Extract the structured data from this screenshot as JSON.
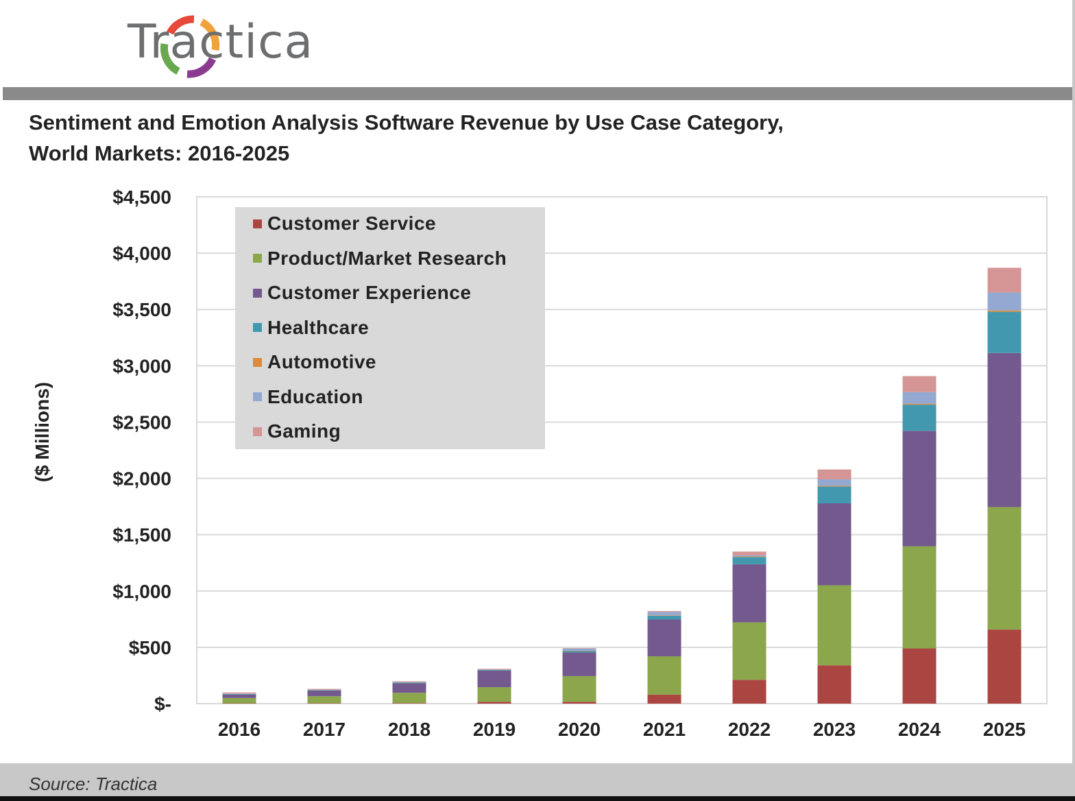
{
  "header": {
    "logo_text": "Tractica"
  },
  "chart_data": {
    "type": "bar",
    "stacked": true,
    "title": "Sentiment and Emotion Analysis Software Revenue by Use Case Category, World Markets: 2016-2025",
    "title_lines": [
      "Sentiment and Emotion Analysis Software Revenue by Use Case Category,",
      "World Markets: 2016-2025"
    ],
    "xlabel": "",
    "ylabel": "($ Millions)",
    "ylim": [
      0,
      4500
    ],
    "yticks": [
      0,
      500,
      1000,
      1500,
      2000,
      2500,
      3000,
      3500,
      4000,
      4500
    ],
    "ytick_labels": [
      "$-",
      "$500",
      "$1,000",
      "$1,500",
      "$2,000",
      "$2,500",
      "$3,000",
      "$3,500",
      "$4,000",
      "$4,500"
    ],
    "grid": true,
    "legend_position": "top-left",
    "categories": [
      "2016",
      "2017",
      "2018",
      "2019",
      "2020",
      "2021",
      "2022",
      "2023",
      "2024",
      "2025"
    ],
    "series": [
      {
        "name": "Customer Service",
        "color": "#ab4541",
        "values": [
          3,
          4,
          5,
          16,
          16,
          80,
          211,
          340,
          490,
          657
        ]
      },
      {
        "name": "Product/Market Research",
        "color": "#8ca64c",
        "values": [
          47,
          62,
          91,
          130,
          228,
          340,
          511,
          711,
          907,
          1088
        ]
      },
      {
        "name": "Customer Experience",
        "color": "#74598f",
        "values": [
          30,
          50,
          84,
          148,
          210,
          326,
          515,
          727,
          1025,
          1368
        ]
      },
      {
        "name": "Healthcare",
        "color": "#4298ae",
        "values": [
          5,
          4,
          6,
          6,
          12,
          34,
          64,
          150,
          232,
          366
        ]
      },
      {
        "name": "Automotive",
        "color": "#dc8b3c",
        "values": [
          1,
          1,
          2,
          2,
          3,
          4,
          5,
          7,
          9,
          12
        ]
      },
      {
        "name": "Education",
        "color": "#93a9d1",
        "values": [
          3,
          3,
          4,
          4,
          20,
          30,
          10,
          56,
          103,
          160
        ]
      },
      {
        "name": "Gaming",
        "color": "#d69595",
        "values": [
          10,
          7,
          6,
          4,
          4,
          8,
          34,
          88,
          142,
          219
        ]
      }
    ]
  },
  "footer": {
    "source": "Source: Tractica"
  }
}
